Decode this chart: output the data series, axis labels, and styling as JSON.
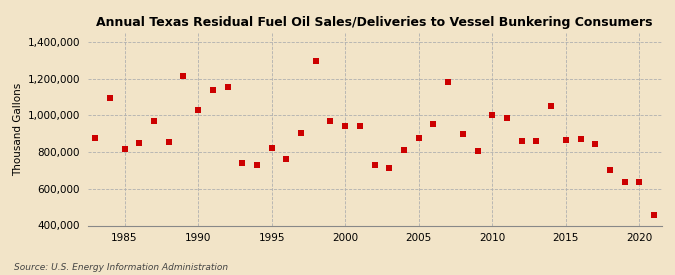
{
  "title": "Annual Texas Residual Fuel Oil Sales/Deliveries to Vessel Bunkering Consumers",
  "ylabel": "Thousand Gallons",
  "source": "Source: U.S. Energy Information Administration",
  "background_color": "#f2e4c8",
  "plot_background_color": "#f2e4c8",
  "marker_color": "#cc0000",
  "marker": "s",
  "marker_size": 16,
  "xlim": [
    1982.5,
    2021.5
  ],
  "ylim": [
    400000,
    1450000
  ],
  "yticks": [
    400000,
    600000,
    800000,
    1000000,
    1200000,
    1400000
  ],
  "xticks": [
    1985,
    1990,
    1995,
    2000,
    2005,
    2010,
    2015,
    2020
  ],
  "title_fontsize": 9,
  "label_fontsize": 7.5,
  "tick_fontsize": 7.5,
  "source_fontsize": 6.5,
  "data": {
    "1983": 875000,
    "1984": 1095000,
    "1985": 815000,
    "1986": 850000,
    "1987": 970000,
    "1988": 855000,
    "1989": 1215000,
    "1990": 1030000,
    "1991": 1140000,
    "1992": 1155000,
    "1993": 740000,
    "1994": 730000,
    "1995": 825000,
    "1996": 760000,
    "1997": 905000,
    "1998": 1295000,
    "1999": 970000,
    "2000": 945000,
    "2001": 940000,
    "2002": 730000,
    "2003": 715000,
    "2004": 810000,
    "2005": 875000,
    "2006": 955000,
    "2007": 1185000,
    "2008": 900000,
    "2009": 805000,
    "2010": 1005000,
    "2011": 985000,
    "2012": 860000,
    "2013": 860000,
    "2014": 1050000,
    "2015": 865000,
    "2016": 870000,
    "2017": 845000,
    "2018": 700000,
    "2019": 640000,
    "2020": 635000,
    "2021": 460000
  }
}
